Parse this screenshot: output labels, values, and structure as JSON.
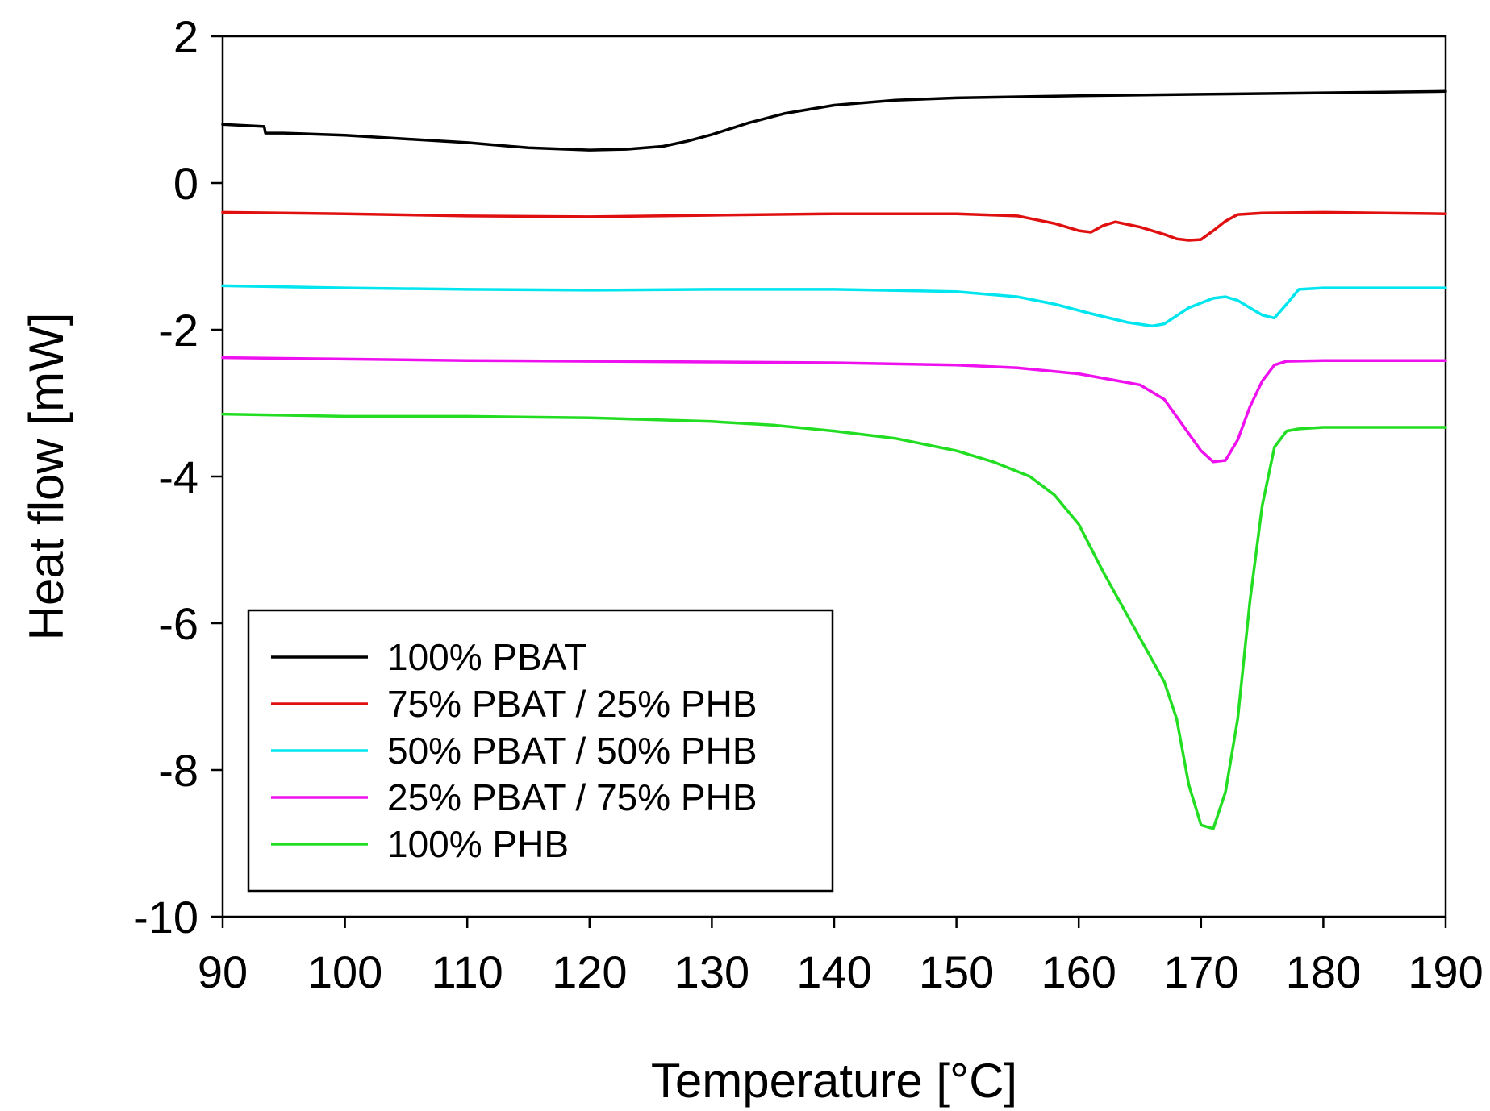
{
  "chart_data": {
    "type": "line",
    "title": "",
    "xlabel": "Temperature [°C]",
    "ylabel": "Heat flow [mW]",
    "xlim": [
      90,
      190
    ],
    "ylim": [
      -10,
      2
    ],
    "xticks": [
      90,
      100,
      110,
      120,
      130,
      140,
      150,
      160,
      170,
      180,
      190
    ],
    "yticks": [
      -10,
      -8,
      -6,
      -4,
      -2,
      0,
      2
    ],
    "grid": false,
    "legend_position": "bottom-left",
    "series": [
      {
        "name": "100% PBAT",
        "color": "#000000",
        "x": [
          90,
          93.4,
          93.5,
          95,
          100,
          105,
          110,
          115,
          120,
          123,
          126,
          128,
          130,
          133,
          136,
          140,
          145,
          150,
          160,
          170,
          180,
          190
        ],
        "y": [
          0.8,
          0.77,
          0.68,
          0.68,
          0.65,
          0.6,
          0.55,
          0.48,
          0.45,
          0.46,
          0.5,
          0.57,
          0.66,
          0.82,
          0.95,
          1.06,
          1.13,
          1.16,
          1.19,
          1.21,
          1.23,
          1.25
        ]
      },
      {
        "name": "75% PBAT / 25% PHB",
        "color": "#e01010",
        "x": [
          90,
          100,
          110,
          120,
          130,
          140,
          150,
          155,
          158,
          160,
          161,
          162,
          163,
          165,
          167,
          168,
          169,
          170,
          171,
          172,
          173,
          175,
          180,
          190
        ],
        "y": [
          -0.4,
          -0.42,
          -0.45,
          -0.46,
          -0.44,
          -0.42,
          -0.42,
          -0.45,
          -0.55,
          -0.65,
          -0.67,
          -0.58,
          -0.53,
          -0.6,
          -0.7,
          -0.76,
          -0.78,
          -0.77,
          -0.65,
          -0.52,
          -0.43,
          -0.41,
          -0.4,
          -0.42
        ]
      },
      {
        "name": "50% PBAT / 50% PHB",
        "color": "#00e5ee",
        "x": [
          90,
          100,
          110,
          120,
          130,
          140,
          150,
          155,
          158,
          161,
          164,
          166,
          167,
          169,
          171,
          172,
          173,
          174,
          175,
          176,
          177,
          178,
          180,
          190
        ],
        "y": [
          -1.4,
          -1.43,
          -1.45,
          -1.46,
          -1.45,
          -1.45,
          -1.48,
          -1.55,
          -1.65,
          -1.78,
          -1.9,
          -1.95,
          -1.92,
          -1.7,
          -1.57,
          -1.55,
          -1.6,
          -1.7,
          -1.8,
          -1.84,
          -1.65,
          -1.45,
          -1.43,
          -1.43
        ]
      },
      {
        "name": "25% PBAT / 75% PHB",
        "color": "#ee10ee",
        "x": [
          90,
          100,
          110,
          120,
          130,
          140,
          150,
          155,
          160,
          165,
          167,
          168.5,
          170,
          171,
          172,
          173,
          174,
          175,
          176,
          177,
          180,
          190
        ],
        "y": [
          -2.38,
          -2.4,
          -2.42,
          -2.43,
          -2.44,
          -2.45,
          -2.48,
          -2.52,
          -2.6,
          -2.75,
          -2.95,
          -3.3,
          -3.65,
          -3.8,
          -3.78,
          -3.5,
          -3.05,
          -2.7,
          -2.48,
          -2.43,
          -2.42,
          -2.42
        ]
      },
      {
        "name": "100% PHB",
        "color": "#22dd22",
        "x": [
          90,
          100,
          110,
          120,
          130,
          135,
          140,
          145,
          150,
          153,
          156,
          158,
          160,
          162,
          164,
          166,
          167,
          168,
          169,
          170,
          171,
          172,
          173,
          174,
          175,
          176,
          177,
          178,
          180,
          190
        ],
        "y": [
          -3.15,
          -3.18,
          -3.18,
          -3.2,
          -3.25,
          -3.3,
          -3.38,
          -3.48,
          -3.65,
          -3.8,
          -4.0,
          -4.25,
          -4.65,
          -5.3,
          -5.9,
          -6.5,
          -6.8,
          -7.3,
          -8.2,
          -8.75,
          -8.8,
          -8.3,
          -7.3,
          -5.7,
          -4.4,
          -3.6,
          -3.38,
          -3.35,
          -3.33,
          -3.33
        ]
      }
    ]
  }
}
